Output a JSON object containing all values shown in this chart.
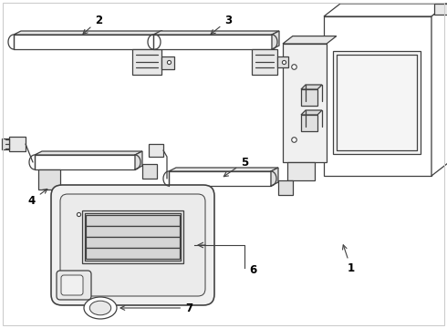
{
  "background_color": "#ffffff",
  "line_color": "#404040",
  "label_color": "#000000",
  "fig_width": 4.9,
  "fig_height": 3.6,
  "dpi": 100,
  "border_color": "#cccccc"
}
